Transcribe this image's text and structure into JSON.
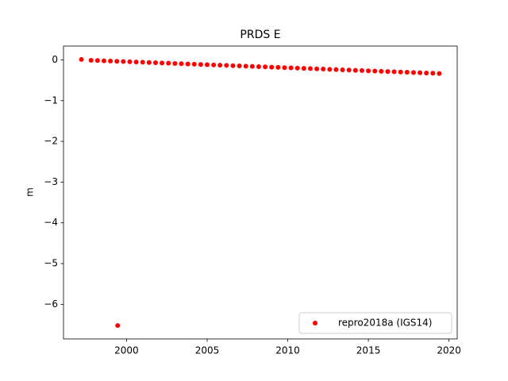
{
  "chart_data": {
    "type": "scatter",
    "title": "PRDS E",
    "ylabel": "m",
    "series": [
      {
        "name": "repro2018a (IGS14)",
        "color": "#ff0000",
        "x": [
          1997.2,
          1997.8,
          1998.2,
          1998.6,
          1999.0,
          1999.4,
          1999.8,
          2000.2,
          2000.6,
          2001.0,
          2001.4,
          2001.8,
          2002.2,
          2002.6,
          2003.0,
          2003.4,
          2003.8,
          2004.2,
          2004.6,
          2005.0,
          2005.4,
          2005.8,
          2006.2,
          2006.6,
          2007.0,
          2007.4,
          2007.8,
          2008.2,
          2008.6,
          2009.0,
          2009.4,
          2009.8,
          2010.2,
          2010.6,
          2011.0,
          2011.4,
          2011.8,
          2012.2,
          2012.6,
          2013.0,
          2013.4,
          2013.8,
          2014.2,
          2014.6,
          2015.0,
          2015.4,
          2015.8,
          2016.2,
          2016.6,
          2017.0,
          2017.4,
          2017.8,
          2018.2,
          2018.6,
          2019.0,
          2019.4,
          1999.45
        ],
        "values": [
          0.01,
          -0.01,
          -0.016,
          -0.022,
          -0.028,
          -0.034,
          -0.04,
          -0.046,
          -0.052,
          -0.058,
          -0.064,
          -0.07,
          -0.076,
          -0.082,
          -0.088,
          -0.094,
          -0.1,
          -0.106,
          -0.112,
          -0.118,
          -0.124,
          -0.13,
          -0.136,
          -0.142,
          -0.148,
          -0.154,
          -0.16,
          -0.166,
          -0.172,
          -0.178,
          -0.184,
          -0.19,
          -0.196,
          -0.202,
          -0.208,
          -0.214,
          -0.22,
          -0.226,
          -0.232,
          -0.238,
          -0.244,
          -0.25,
          -0.256,
          -0.262,
          -0.268,
          -0.274,
          -0.28,
          -0.286,
          -0.292,
          -0.298,
          -0.304,
          -0.31,
          -0.316,
          -0.322,
          -0.328,
          -0.334,
          -6.52
        ]
      }
    ],
    "xlim": [
      1996.09,
      2020.51
    ],
    "xticks": [
      2000,
      2005,
      2010,
      2015,
      2020
    ],
    "ylim": [
      -6.85,
      0.34
    ],
    "yticks": [
      {
        "value": -6,
        "label": "−6"
      },
      {
        "value": -5,
        "label": "−5"
      },
      {
        "value": -4,
        "label": "−4"
      },
      {
        "value": -3,
        "label": "−3"
      },
      {
        "value": -2,
        "label": "−2"
      },
      {
        "value": -1,
        "label": "−1"
      },
      0
    ],
    "legend": "lower right"
  }
}
